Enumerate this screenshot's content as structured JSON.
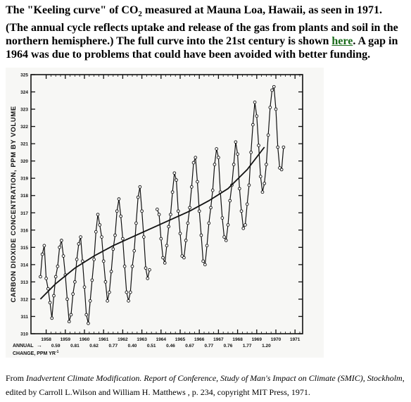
{
  "caption": {
    "part1": "The \"Keeling curve\" of CO",
    "sub": "2",
    "part2": " measured at Mauna Loa, Hawaii, as seen in 1971. (The annual cycle reflects uptake and release of the gas from plants and soil in the northern hemisphere.) The full curve into the 21st century is shown ",
    "link_text": "here",
    "part3": ". A gap in 1964 was due to problems that could have been avoided with better funding."
  },
  "credit": {
    "prefix": "From ",
    "title_italic": "Inadvertent Climate Modification. Report of Conference, Study of Man's Impact on Climate (SMIC), Stockholm",
    "suffix": ", edited by Carroll L.Wilson and William H. Matthews , p. 234, copyright MIT Press, 1971."
  },
  "colors": {
    "background": "#ffffff",
    "figure_bg": "#f7f7f5",
    "line": "#111111",
    "link": "#1a6b1a"
  },
  "chart_data": {
    "type": "line",
    "ylabel": "CARBON DIOXIDE CONCENTRATION, PPM BY VOLUME",
    "ylim": [
      310,
      325
    ],
    "xlim": [
      1958,
      1972
    ],
    "y_ticks": [
      "310",
      "311",
      "312",
      "313",
      "314",
      "315",
      "316",
      "317",
      "318",
      "319",
      "320",
      "321",
      "322",
      "323",
      "324",
      "325"
    ],
    "x_ticks": [
      "1958",
      "1959",
      "1960",
      "1961",
      "1962",
      "1963",
      "1964",
      "1965",
      "1966",
      "1967",
      "1968",
      "1969",
      "1970",
      "1971"
    ],
    "annual_change_label": "ANNUAL",
    "annual_change_label2": "CHANGE, PPM YR",
    "annual_change_sup": "-1",
    "annual_change_values": [
      "0.59",
      "0.81",
      "0.62",
      "0.77",
      "0.40",
      "0.51",
      "0.46",
      "0.67",
      "0.77",
      "0.76",
      "1.77",
      "1.20"
    ],
    "grid": false,
    "series": [
      {
        "x": [
          1958.2,
          1958.3,
          1958.4,
          1958.5,
          1958.6,
          1958.7,
          1958.8,
          1958.9,
          1959.0,
          1959.1,
          1959.2,
          1959.3,
          1959.4,
          1959.5,
          1959.6,
          1959.7,
          1959.8,
          1959.9,
          1960.0,
          1960.1,
          1960.2,
          1960.3,
          1960.4,
          1960.5,
          1960.6,
          1960.7,
          1960.8,
          1960.9,
          1961.0,
          1961.1,
          1961.2,
          1961.3,
          1961.4,
          1961.5,
          1961.6,
          1961.7,
          1961.8,
          1961.9,
          1962.0,
          1962.1,
          1962.2,
          1962.3,
          1962.4,
          1962.5,
          1962.6,
          1962.7,
          1962.8,
          1962.9,
          1963.0,
          1963.1,
          1963.2,
          1963.3,
          1963.4,
          1963.5,
          1963.6,
          1963.7,
          1963.8,
          1963.9,
          1964.3,
          1964.4,
          1964.5,
          1964.6,
          1964.7,
          1964.8,
          1964.9,
          1965.0,
          1965.1,
          1965.2,
          1965.3,
          1965.4,
          1965.5,
          1965.6,
          1965.7,
          1965.8,
          1965.9,
          1966.0,
          1966.1,
          1966.2,
          1966.3,
          1966.4,
          1966.5,
          1966.6,
          1966.7,
          1966.8,
          1966.9,
          1967.0,
          1967.1,
          1967.2,
          1967.3,
          1967.4,
          1967.5,
          1967.6,
          1967.7,
          1967.8,
          1967.9,
          1968.0,
          1968.1,
          1968.2,
          1968.3,
          1968.4,
          1968.5,
          1968.6,
          1968.7,
          1968.8,
          1968.9,
          1969.0,
          1969.1,
          1969.2,
          1969.3,
          1969.4,
          1969.5,
          1969.6,
          1969.7,
          1969.8,
          1969.9,
          1970.0,
          1970.1,
          1970.2,
          1970.3,
          1970.4,
          1970.5,
          1970.6,
          1970.7,
          1970.8,
          1970.9
        ],
        "y": [
          313.3,
          314.6,
          315.1,
          313.2,
          312.6,
          311.8,
          310.9,
          312.2,
          313.3,
          313.9,
          315.0,
          315.4,
          314.5,
          313.4,
          312.0,
          310.7,
          311.1,
          312.3,
          313.0,
          314.3,
          315.2,
          315.6,
          314.2,
          312.7,
          311.1,
          310.6,
          311.9,
          313.1,
          314.3,
          315.9,
          316.9,
          316.3,
          315.6,
          314.2,
          313.0,
          311.9,
          312.4,
          313.6,
          314.9,
          315.7,
          317.1,
          317.8,
          316.8,
          315.5,
          313.9,
          312.4,
          311.9,
          312.4,
          313.9,
          314.8,
          316.4,
          317.9,
          318.5,
          317.1,
          315.6,
          313.8,
          313.2,
          313.7,
          317.2,
          316.9,
          315.5,
          314.4,
          314.1,
          315.1,
          316.2,
          316.9,
          318.2,
          319.3,
          318.9,
          317.1,
          315.8,
          314.5,
          314.4,
          315.4,
          316.4,
          317.3,
          318.5,
          319.9,
          320.2,
          318.8,
          317.1,
          315.7,
          314.2,
          314.0,
          315.1,
          316.4,
          317.3,
          318.3,
          319.8,
          320.7,
          320.2,
          318.2,
          316.7,
          315.6,
          315.4,
          316.3,
          317.7,
          318.6,
          319.8,
          321.1,
          320.4,
          318.4,
          317.1,
          316.1,
          316.3,
          317.5,
          318.6,
          320.5,
          322.1,
          323.4,
          322.6,
          320.9,
          319.1,
          318.2,
          318.7,
          319.8,
          321.5,
          323.1,
          324.1,
          324.3,
          323.0,
          320.8,
          319.6,
          319.5,
          320.8
        ]
      },
      {
        "x": [
          1958.2,
          1959.0,
          1960.0,
          1961.0,
          1962.0,
          1963.0,
          1964.0,
          1965.0,
          1966.0,
          1967.0,
          1968.0,
          1969.0,
          1969.9
        ],
        "y": [
          312.0,
          312.9,
          313.8,
          314.5,
          315.1,
          315.6,
          316.1,
          316.6,
          317.1,
          317.7,
          318.4,
          319.5,
          320.8
        ]
      }
    ]
  }
}
